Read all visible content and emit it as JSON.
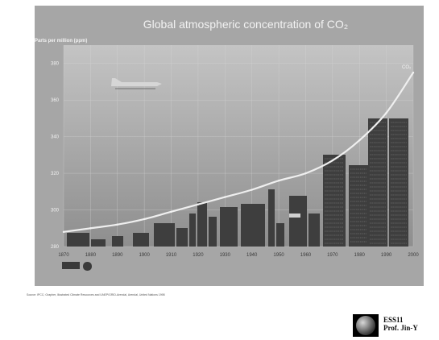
{
  "chart_data": {
    "type": "line",
    "title": "Global atmospheric concentration of CO₂",
    "ylabel": "Parts per million (ppm)",
    "xlabel": "",
    "x_ticks": [
      "1870",
      "1880",
      "1890",
      "1900",
      "1910",
      "1920",
      "1930",
      "1940",
      "1950",
      "1960",
      "1970",
      "1980",
      "1990",
      "2000"
    ],
    "y_ticks": [
      "280",
      "300",
      "320",
      "340",
      "360",
      "380"
    ],
    "xlim": [
      1870,
      2000
    ],
    "ylim": [
      280,
      390
    ],
    "grid": true,
    "end_label": "CO₂",
    "series": [
      {
        "name": "",
        "x": [
          1870,
          1880,
          1890,
          1900,
          1910,
          1920,
          1930,
          1940,
          1950,
          1960,
          1970,
          1980,
          1990,
          2000
        ],
        "values": [
          288,
          290,
          292,
          295,
          299,
          303,
          307,
          311,
          316,
          320,
          327,
          338,
          353,
          375
        ]
      }
    ]
  },
  "source_note": "Source: IPCC; Grapher, Illustrated Climate Resources and UNEP/GRID-Arendal, Arendal, United Nations 1998",
  "footer": {
    "course_code": "ESS11",
    "instructor": "Prof. Jin-Y"
  },
  "colors": {
    "panel": "#a4a4a4",
    "plot_top": "#bdbdbd",
    "plot_bottom": "#8c8c8c",
    "curve": "#eeeeee",
    "buildings": "#3e3e3e",
    "text_light": "#f2f2f2"
  }
}
